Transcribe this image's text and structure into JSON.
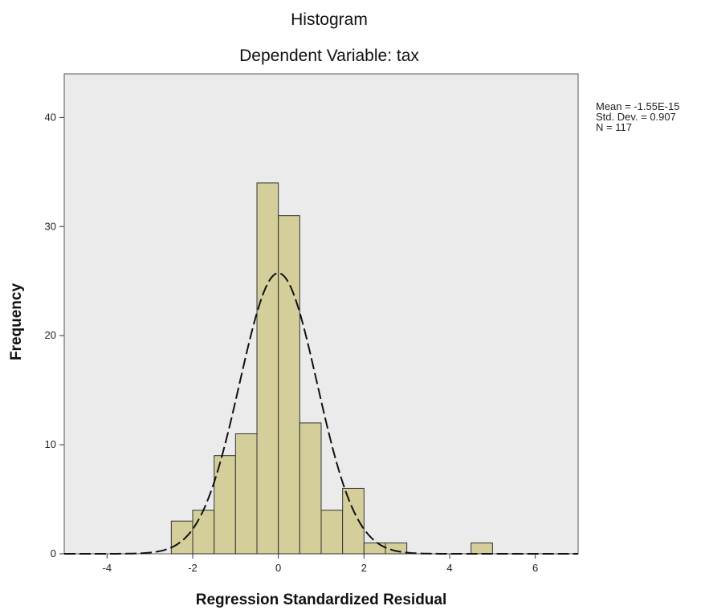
{
  "chart_data": {
    "type": "bar",
    "title": "Histogram",
    "subtitle": "Dependent Variable: tax",
    "xlabel": "Regression Standardized Residual",
    "ylabel": "Frequency",
    "xlim": [
      -5,
      7
    ],
    "ylim": [
      0,
      44
    ],
    "xticks": [
      -4,
      -2,
      0,
      2,
      4,
      6
    ],
    "yticks": [
      0,
      10,
      20,
      30,
      40
    ],
    "bin_width": 0.5,
    "bins": [
      {
        "start": -2.5,
        "end": -2.0,
        "count": 3
      },
      {
        "start": -2.0,
        "end": -1.5,
        "count": 4
      },
      {
        "start": -1.5,
        "end": -1.0,
        "count": 9
      },
      {
        "start": -1.0,
        "end": -0.5,
        "count": 11
      },
      {
        "start": -0.5,
        "end": 0.0,
        "count": 34
      },
      {
        "start": 0.0,
        "end": 0.5,
        "count": 31
      },
      {
        "start": 0.5,
        "end": 1.0,
        "count": 12
      },
      {
        "start": 1.0,
        "end": 1.5,
        "count": 4
      },
      {
        "start": 1.5,
        "end": 2.0,
        "count": 6
      },
      {
        "start": 2.0,
        "end": 2.5,
        "count": 1
      },
      {
        "start": 2.5,
        "end": 3.0,
        "count": 1
      },
      {
        "start": 4.5,
        "end": 5.0,
        "count": 1
      }
    ],
    "normal_curve": {
      "mean": -1.55e-15,
      "sd": 0.907,
      "n": 117
    },
    "stats": [
      "Mean = -1.55E-15",
      "Std. Dev. = 0.907",
      "N = 117"
    ],
    "colors": {
      "plot_bg": "#ebebeb",
      "bar_fill": "#d3ce9a",
      "bar_stroke": "#333333",
      "curve": "#111111"
    },
    "grid": false,
    "legend": "top-right"
  }
}
